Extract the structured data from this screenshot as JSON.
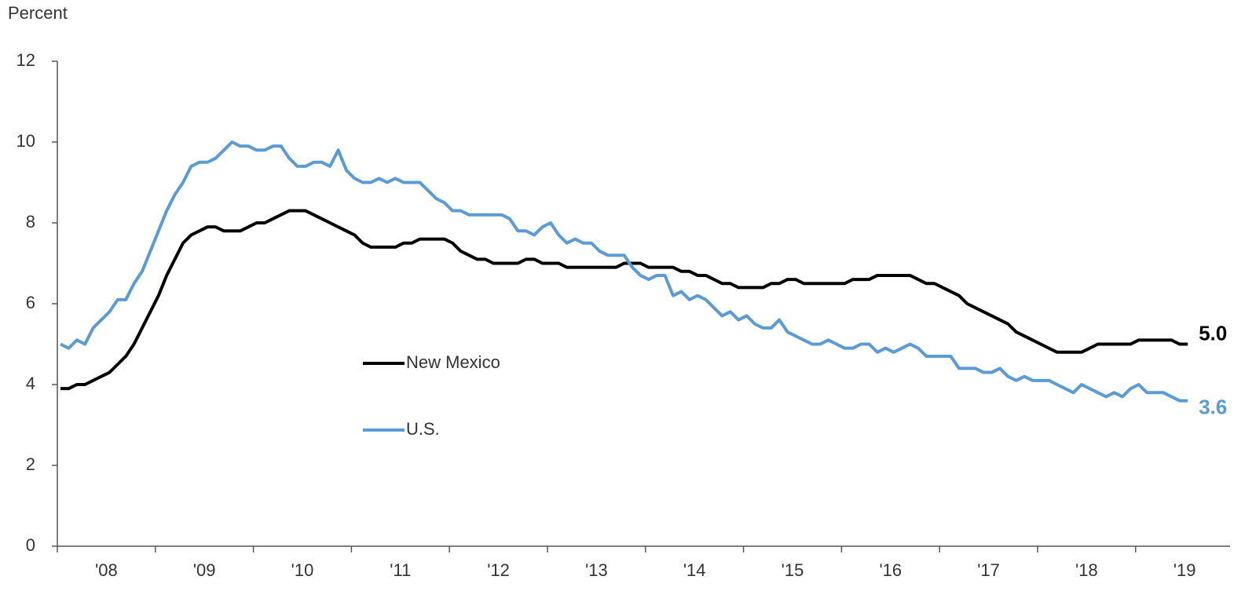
{
  "chart_data": {
    "type": "line",
    "y_label": "Percent",
    "categories": [
      null,
      null,
      null,
      null,
      null,
      null,
      "'08",
      null,
      null,
      null,
      null,
      null,
      null,
      null,
      null,
      null,
      null,
      null,
      "'09",
      null,
      null,
      null,
      null,
      null,
      null,
      null,
      null,
      null,
      null,
      null,
      "'10",
      null,
      null,
      null,
      null,
      null,
      null,
      null,
      null,
      null,
      null,
      null,
      "'11",
      null,
      null,
      null,
      null,
      null,
      null,
      null,
      null,
      null,
      null,
      null,
      "'12",
      null,
      null,
      null,
      null,
      null,
      null,
      null,
      null,
      null,
      null,
      null,
      "'13",
      null,
      null,
      null,
      null,
      null,
      null,
      null,
      null,
      null,
      null,
      null,
      "'14",
      null,
      null,
      null,
      null,
      null,
      null,
      null,
      null,
      null,
      null,
      null,
      "'15",
      null,
      null,
      null,
      null,
      null,
      null,
      null,
      null,
      null,
      null,
      null,
      "'16",
      null,
      null,
      null,
      null,
      null,
      null,
      null,
      null,
      null,
      null,
      null,
      "'17",
      null,
      null,
      null,
      null,
      null,
      null,
      null,
      null,
      null,
      null,
      null,
      "'18",
      null,
      null,
      null,
      null,
      null,
      null,
      null,
      null,
      null,
      null,
      null,
      "'19"
    ],
    "series": [
      {
        "name": "New Mexico",
        "color": "#000000",
        "end_label": "5.0",
        "values": [
          3.9,
          3.9,
          4.0,
          4.0,
          4.1,
          4.2,
          4.3,
          4.5,
          4.7,
          5.0,
          5.4,
          5.8,
          6.2,
          6.7,
          7.1,
          7.5,
          7.7,
          7.8,
          7.9,
          7.9,
          7.8,
          7.8,
          7.8,
          7.9,
          8.0,
          8.0,
          8.1,
          8.2,
          8.3,
          8.3,
          8.3,
          8.2,
          8.1,
          8.0,
          7.9,
          7.8,
          7.7,
          7.5,
          7.4,
          7.4,
          7.4,
          7.4,
          7.5,
          7.5,
          7.6,
          7.6,
          7.6,
          7.6,
          7.5,
          7.3,
          7.2,
          7.1,
          7.1,
          7.0,
          7.0,
          7.0,
          7.0,
          7.1,
          7.1,
          7.0,
          7.0,
          7.0,
          6.9,
          6.9,
          6.9,
          6.9,
          6.9,
          6.9,
          6.9,
          7.0,
          7.0,
          7.0,
          6.9,
          6.9,
          6.9,
          6.9,
          6.8,
          6.8,
          6.7,
          6.7,
          6.6,
          6.5,
          6.5,
          6.4,
          6.4,
          6.4,
          6.4,
          6.5,
          6.5,
          6.6,
          6.6,
          6.5,
          6.5,
          6.5,
          6.5,
          6.5,
          6.5,
          6.6,
          6.6,
          6.6,
          6.7,
          6.7,
          6.7,
          6.7,
          6.7,
          6.6,
          6.5,
          6.5,
          6.4,
          6.3,
          6.2,
          6.0,
          5.9,
          5.8,
          5.7,
          5.6,
          5.5,
          5.3,
          5.2,
          5.1,
          5.0,
          4.9,
          4.8,
          4.8,
          4.8,
          4.8,
          4.9,
          5.0,
          5.0,
          5.0,
          5.0,
          5.0,
          5.1,
          5.1,
          5.1,
          5.1,
          5.1,
          5.0,
          5.0
        ]
      },
      {
        "name": "U.S.",
        "color": "#5b9bd5",
        "end_label": "3.6",
        "values": [
          5.0,
          4.9,
          5.1,
          5.0,
          5.4,
          5.6,
          5.8,
          6.1,
          6.1,
          6.5,
          6.8,
          7.3,
          7.8,
          8.3,
          8.7,
          9.0,
          9.4,
          9.5,
          9.5,
          9.6,
          9.8,
          10.0,
          9.9,
          9.9,
          9.8,
          9.8,
          9.9,
          9.9,
          9.6,
          9.4,
          9.4,
          9.5,
          9.5,
          9.4,
          9.8,
          9.3,
          9.1,
          9.0,
          9.0,
          9.1,
          9.0,
          9.1,
          9.0,
          9.0,
          9.0,
          8.8,
          8.6,
          8.5,
          8.3,
          8.3,
          8.2,
          8.2,
          8.2,
          8.2,
          8.2,
          8.1,
          7.8,
          7.8,
          7.7,
          7.9,
          8.0,
          7.7,
          7.5,
          7.6,
          7.5,
          7.5,
          7.3,
          7.2,
          7.2,
          7.2,
          6.9,
          6.7,
          6.6,
          6.7,
          6.7,
          6.2,
          6.3,
          6.1,
          6.2,
          6.1,
          5.9,
          5.7,
          5.8,
          5.6,
          5.7,
          5.5,
          5.4,
          5.4,
          5.6,
          5.3,
          5.2,
          5.1,
          5.0,
          5.0,
          5.1,
          5.0,
          4.9,
          4.9,
          5.0,
          5.0,
          4.8,
          4.9,
          4.8,
          4.9,
          5.0,
          4.9,
          4.7,
          4.7,
          4.7,
          4.7,
          4.4,
          4.4,
          4.4,
          4.3,
          4.3,
          4.4,
          4.2,
          4.1,
          4.2,
          4.1,
          4.1,
          4.1,
          4.0,
          3.9,
          3.8,
          4.0,
          3.9,
          3.8,
          3.7,
          3.8,
          3.7,
          3.9,
          4.0,
          3.8,
          3.8,
          3.8,
          3.7,
          3.6,
          3.6
        ]
      }
    ],
    "ylim": [
      0,
      12
    ],
    "yticks": [
      0,
      2,
      4,
      6,
      8,
      10,
      12
    ],
    "grid": false
  }
}
